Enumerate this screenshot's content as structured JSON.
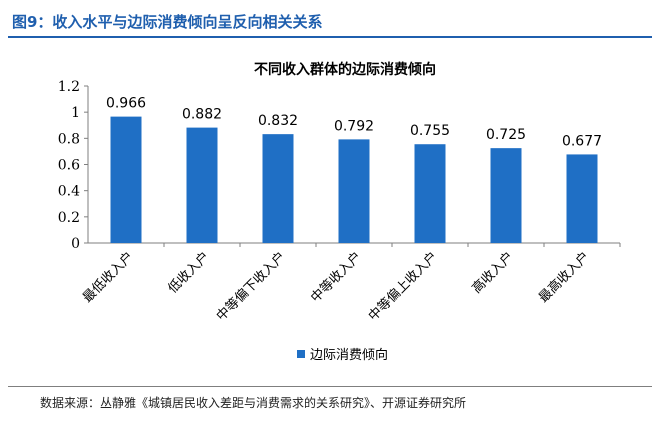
{
  "figure": {
    "title": "图9：收入水平与边际消费倾向呈反向相关关系",
    "source": "数据来源：丛静雅《城镇居民收入差距与消费需求的关系研究》、开源证券研究所"
  },
  "colors": {
    "bar": "#1f6fc5",
    "title_blue": "#1f5fae"
  },
  "chart_data": {
    "type": "bar",
    "title": "不同收入群体的边际消费倾向",
    "categories": [
      "最低收入户",
      "低收入户",
      "中等偏下收入户",
      "中等收入户",
      "中等偏上收入户",
      "高收入户",
      "最高收入户"
    ],
    "series": [
      {
        "name": "边际消费倾向",
        "values": [
          0.966,
          0.882,
          0.832,
          0.792,
          0.755,
          0.725,
          0.677
        ]
      }
    ],
    "data_labels": [
      "0.966",
      "0.882",
      "0.832",
      "0.792",
      "0.755",
      "0.725",
      "0.677"
    ],
    "yticks": [
      "0",
      "0.2",
      "0.4",
      "0.6",
      "0.8",
      "1",
      "1.2"
    ],
    "ylim": [
      0,
      1.2
    ],
    "grid": false,
    "legend": "bottom"
  }
}
